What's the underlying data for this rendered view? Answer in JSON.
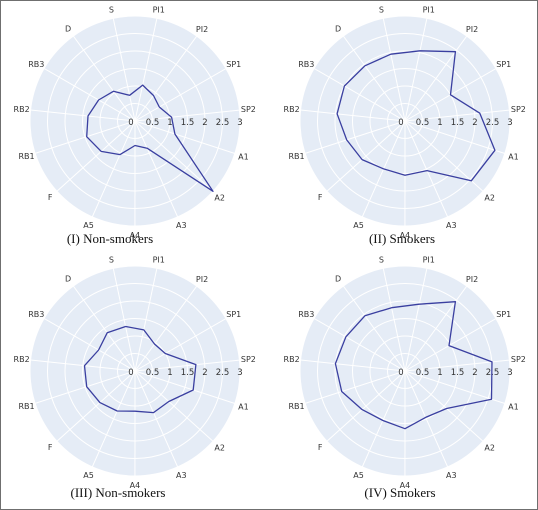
{
  "colors": {
    "background": "#e5ecf6",
    "grid": "#ffffff",
    "series": "#3a3fa0",
    "frame": "#6f6f6f"
  },
  "chart_data": [
    {
      "type": "radar",
      "caption": "(I) Non-smokers",
      "axes": [
        "PI1",
        "PI2",
        "SP1",
        "SP2",
        "A1",
        "A2",
        "A3",
        "A4",
        "A5",
        "F",
        "RB1",
        "RB2",
        "RB3",
        "D",
        "S"
      ],
      "radial_ticks": [
        "0",
        "0.5",
        "1",
        "1.5",
        "2",
        "2.5",
        "3"
      ],
      "rlim": [
        0,
        3
      ],
      "series": [
        {
          "values": [
            1.05,
            0.9,
            0.8,
            1.05,
            1.2,
            3.0,
            0.85,
            0.7,
            1.05,
            1.3,
            1.45,
            1.35,
            1.2,
            1.05,
            0.75
          ]
        }
      ]
    },
    {
      "type": "radar",
      "caption": "(II) Smokers",
      "axes": [
        "PI1",
        "PI2",
        "SP1",
        "SP2",
        "A1",
        "A2",
        "A3",
        "A4",
        "A5",
        "F",
        "RB1",
        "RB2",
        "RB3",
        "D",
        "S"
      ],
      "radial_ticks": [
        "0",
        "0.5",
        "1",
        "1.5",
        "2",
        "2.5",
        "3"
      ],
      "rlim": [
        0,
        3
      ],
      "series": [
        {
          "values": [
            2.05,
            2.45,
            1.5,
            2.15,
            2.7,
            2.55,
            1.55,
            1.55,
            1.5,
            1.65,
            1.75,
            1.95,
            2.0,
            1.95,
            1.95
          ]
        }
      ]
    },
    {
      "type": "radar",
      "caption": "(III) Non-smokers",
      "axes": [
        "PI1",
        "PI2",
        "SP1",
        "SP2",
        "A1",
        "A2",
        "A3",
        "A4",
        "A5",
        "F",
        "RB1",
        "RB2",
        "RB3",
        "D",
        "S"
      ],
      "radial_ticks": [
        "0",
        "0.5",
        "1",
        "1.5",
        "2",
        "2.5",
        "3"
      ],
      "rlim": [
        0,
        3
      ],
      "series": [
        {
          "values": [
            1.2,
            0.95,
            1.0,
            1.75,
            1.75,
            1.3,
            1.3,
            1.15,
            1.25,
            1.35,
            1.45,
            1.45,
            1.2,
            1.35,
            1.3
          ]
        }
      ]
    },
    {
      "type": "radar",
      "caption": "(IV) Smokers",
      "axes": [
        "PI1",
        "PI2",
        "SP1",
        "SP2",
        "A1",
        "A2",
        "A3",
        "A4",
        "A5",
        "F",
        "RB1",
        "RB2",
        "RB3",
        "D",
        "S"
      ],
      "radial_ticks": [
        "0",
        "0.5",
        "1",
        "1.5",
        "2",
        "2.5",
        "3"
      ],
      "rlim": [
        0,
        3
      ],
      "series": [
        {
          "values": [
            1.95,
            2.45,
            1.45,
            2.5,
            2.6,
            1.6,
            1.45,
            1.65,
            1.55,
            1.65,
            1.9,
            2.0,
            1.95,
            1.95,
            1.85
          ]
        }
      ]
    }
  ]
}
